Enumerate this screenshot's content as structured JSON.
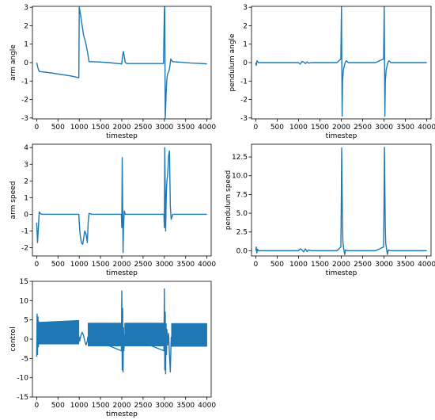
{
  "colors": {
    "line": "#1f77b4",
    "axis": "#000000",
    "background": "#ffffff"
  },
  "chart_data": [
    {
      "id": "arm-angle",
      "type": "line",
      "xlabel": "timestep",
      "ylabel": "arm angle",
      "xlim": [
        -100,
        4100
      ],
      "ylim": [
        -3.05,
        3.05
      ],
      "xticks": [
        0,
        500,
        1000,
        1500,
        2000,
        2500,
        3000,
        3500,
        4000
      ],
      "yticks": [
        -3,
        -2,
        -1,
        0,
        1,
        2,
        3
      ],
      "grid": false,
      "series": [
        {
          "x": [
            0,
            30,
            60,
            200,
            400,
            600,
            800,
            990,
            1000,
            1010,
            1050,
            1100,
            1150,
            1200,
            1230,
            1300,
            1500,
            1700,
            1900,
            2000,
            2020,
            2040,
            2060,
            2080,
            2120,
            2200,
            2400,
            2600,
            2800,
            2980,
            3000,
            3010,
            3020,
            3030,
            3040,
            3050,
            3060,
            3070,
            3080,
            3100,
            3120,
            3140,
            3150,
            3170,
            3200,
            3400,
            3600,
            3800,
            4000
          ],
          "y": [
            0.0,
            -0.3,
            -0.48,
            -0.52,
            -0.58,
            -0.65,
            -0.72,
            -0.82,
            3.0,
            2.9,
            2.3,
            1.5,
            1.1,
            0.5,
            0.05,
            0.05,
            0.03,
            0.0,
            -0.05,
            -0.07,
            0.4,
            0.6,
            0.3,
            0.0,
            -0.05,
            -0.05,
            -0.05,
            -0.05,
            -0.05,
            -0.05,
            2.8,
            3.1,
            -3.0,
            -2.5,
            -1.8,
            -1.2,
            -0.9,
            -0.7,
            -0.6,
            -0.5,
            -0.35,
            0.0,
            0.2,
            0.12,
            0.05,
            0.02,
            -0.02,
            -0.04,
            -0.07
          ]
        }
      ]
    },
    {
      "id": "pendulum-angle",
      "type": "line",
      "xlabel": "timestep",
      "ylabel": "pendulum angle",
      "xlim": [
        -100,
        4100
      ],
      "ylim": [
        -3.05,
        3.05
      ],
      "xticks": [
        0,
        500,
        1000,
        1500,
        2000,
        2500,
        3000,
        3500,
        4000
      ],
      "yticks": [
        -3,
        -2,
        -1,
        0,
        1,
        2,
        3
      ],
      "grid": false,
      "series": [
        {
          "x": [
            0,
            10,
            30,
            60,
            100,
            300,
            600,
            900,
            1000,
            1040,
            1080,
            1120,
            1160,
            1200,
            1240,
            1300,
            1600,
            1900,
            1990,
            2005,
            2010,
            2020,
            2030,
            2050,
            2080,
            2100,
            2120,
            2160,
            2200,
            2500,
            2800,
            2990,
            3005,
            3010,
            3020,
            3030,
            3050,
            3080,
            3100,
            3120,
            3160,
            3200,
            3500,
            4000
          ],
          "y": [
            0.0,
            -0.15,
            0.1,
            0.0,
            0.0,
            0.0,
            0.0,
            0.0,
            0.0,
            -0.08,
            0.06,
            0.03,
            -0.05,
            0.04,
            -0.03,
            0.0,
            0.0,
            0.0,
            0.2,
            3.1,
            1.0,
            -2.9,
            -1.0,
            -0.4,
            -0.1,
            0.05,
            0.1,
            0.0,
            0.0,
            0.0,
            0.0,
            0.2,
            3.1,
            1.0,
            -2.9,
            -1.0,
            -0.4,
            -0.1,
            0.05,
            0.1,
            0.0,
            0.0,
            0.0,
            0.0
          ]
        }
      ]
    },
    {
      "id": "arm-speed",
      "type": "line",
      "xlabel": "timestep",
      "ylabel": "arm speed",
      "xlim": [
        -100,
        4100
      ],
      "ylim": [
        -2.5,
        4.2
      ],
      "xticks": [
        0,
        500,
        1000,
        1500,
        2000,
        2500,
        3000,
        3500,
        4000
      ],
      "yticks": [
        -2,
        -1,
        0,
        1,
        2,
        3,
        4
      ],
      "grid": false,
      "series": [
        {
          "x": [
            0,
            20,
            40,
            60,
            80,
            120,
            200,
            400,
            600,
            800,
            990,
            1000,
            1020,
            1050,
            1080,
            1100,
            1130,
            1160,
            1190,
            1210,
            1230,
            1300,
            1500,
            1700,
            1900,
            1990,
            2000,
            2010,
            2020,
            2030,
            2040,
            2050,
            2060,
            2080,
            2100,
            2200,
            2400,
            2600,
            2800,
            2990,
            3000,
            3010,
            3020,
            3030,
            3040,
            3050,
            3060,
            3070,
            3080,
            3100,
            3120,
            3140,
            3160,
            3200,
            3400,
            3600,
            3800,
            4000
          ],
          "y": [
            -0.5,
            -1.7,
            -0.8,
            0.15,
            0.05,
            0.0,
            0.0,
            0.0,
            0.0,
            0.0,
            0.0,
            -0.5,
            -1.2,
            -1.7,
            -1.8,
            -1.5,
            -1.0,
            -1.2,
            -1.7,
            -0.5,
            0.05,
            0.0,
            0.0,
            0.0,
            0.0,
            0.0,
            -0.8,
            3.4,
            0.5,
            -2.3,
            -0.8,
            -0.2,
            0.2,
            0.0,
            0.0,
            0.0,
            0.0,
            0.0,
            0.0,
            0.0,
            -0.8,
            4.0,
            1.5,
            -1.0,
            0.5,
            1.5,
            2.0,
            2.2,
            2.5,
            3.5,
            3.8,
            0.5,
            -0.3,
            0.0,
            0.0,
            0.0,
            0.0,
            0.0
          ]
        }
      ]
    },
    {
      "id": "pendulum-speed",
      "type": "line",
      "xlabel": "timestep",
      "ylabel": "pendulum speed",
      "xlim": [
        -100,
        4100
      ],
      "ylim": [
        -0.7,
        14.2
      ],
      "xticks": [
        0,
        500,
        1000,
        1500,
        2000,
        2500,
        3000,
        3500,
        4000
      ],
      "yticks": [
        0.0,
        2.5,
        5.0,
        7.5,
        10.0,
        12.5
      ],
      "grid": false,
      "series": [
        {
          "x": [
            0,
            10,
            25,
            40,
            60,
            100,
            300,
            600,
            900,
            1000,
            1040,
            1080,
            1120,
            1160,
            1200,
            1240,
            1300,
            1600,
            1900,
            1990,
            2000,
            2010,
            2020,
            2030,
            2040,
            2060,
            2080,
            2100,
            2120,
            2160,
            2200,
            2500,
            2800,
            2990,
            3000,
            3010,
            3020,
            3030,
            3040,
            3060,
            3080,
            3100,
            3120,
            3160,
            3200,
            3500,
            4000
          ],
          "y": [
            0.0,
            0.5,
            -0.3,
            0.2,
            0.0,
            0.0,
            0.0,
            0.0,
            0.0,
            0.0,
            0.25,
            0.1,
            -0.15,
            0.25,
            -0.1,
            0.1,
            0.0,
            0.0,
            0.0,
            0.5,
            6.0,
            13.7,
            8.0,
            3.0,
            1.0,
            0.2,
            -0.5,
            0.1,
            0.05,
            0.0,
            0.0,
            0.0,
            0.0,
            0.5,
            6.0,
            13.8,
            8.0,
            3.0,
            1.0,
            0.2,
            -0.5,
            0.1,
            0.05,
            0.0,
            0.0,
            0.0,
            0.0
          ]
        }
      ]
    },
    {
      "id": "control",
      "type": "line",
      "xlabel": "timestep",
      "ylabel": "control",
      "xlim": [
        -100,
        4100
      ],
      "ylim": [
        -15,
        15
      ],
      "xticks": [
        0,
        500,
        1000,
        1500,
        2000,
        2500,
        3000,
        3500,
        4000
      ],
      "yticks": [
        -15,
        -10,
        -5,
        0,
        5,
        10,
        15
      ],
      "grid": false,
      "series": [
        {
          "x": [
            0,
            10,
            20,
            30,
            40,
            50,
            60,
            1000,
            1010,
            1040,
            1070,
            1100,
            1130,
            1160,
            1190,
            1200,
            1990,
            2000,
            2010,
            2020,
            2030,
            2040,
            2050,
            2060,
            2990,
            3000,
            3010,
            3020,
            3030,
            3040,
            3050,
            3060,
            3080,
            3100,
            3120,
            3140,
            3160,
            4000
          ],
          "y": [
            -4.5,
            6.5,
            -4.0,
            5.8,
            -2.0,
            4.5,
            0.5,
            0.5,
            -0.5,
            1.0,
            1.8,
            1.0,
            -0.5,
            -1.5,
            -0.5,
            0.5,
            -3.0,
            12.5,
            -8.0,
            8.0,
            -8.5,
            3.0,
            -3.0,
            1.0,
            -3.0,
            13.0,
            -8.0,
            7.0,
            -9.0,
            4.0,
            -4.0,
            2.5,
            -1.5,
            1.5,
            -4.0,
            -8.5,
            0.5,
            0.5
          ]
        }
      ],
      "oscillation_bands": [
        {
          "x": [
            30,
            995
          ],
          "y_low": -1.3,
          "y_high": 4.4,
          "y_high_end": 4.9
        },
        {
          "x": [
            1205,
            1995
          ],
          "y_low": -1.8,
          "y_high": 4.2,
          "y_high_end": 4.2
        },
        {
          "x": [
            2065,
            2985
          ],
          "y_low": -1.8,
          "y_high": 4.2,
          "y_high_end": 4.2
        },
        {
          "x": [
            3165,
            4000
          ],
          "y_low": -1.9,
          "y_high": 4.1,
          "y_high_end": 4.1
        }
      ]
    }
  ]
}
